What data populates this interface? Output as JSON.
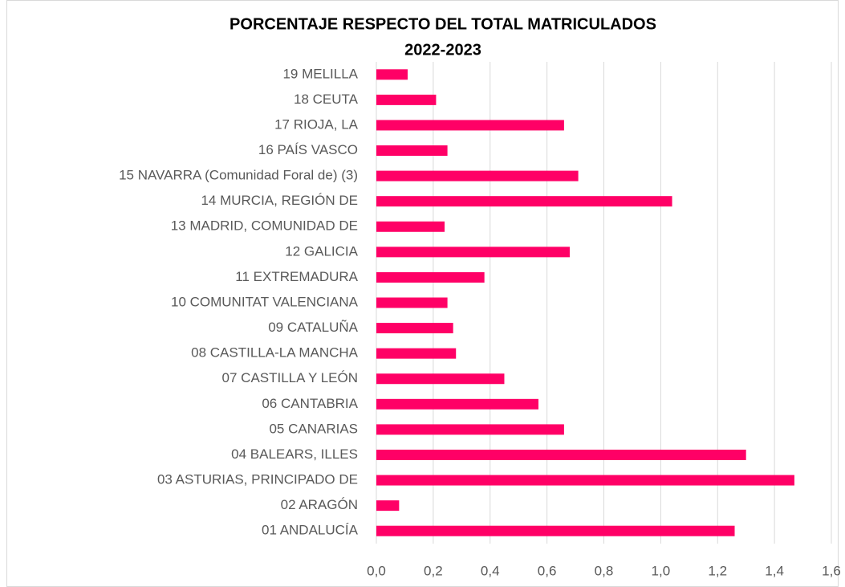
{
  "chart_data": {
    "type": "barh",
    "title": [
      "PORCENTAJE RESPECTO DEL TOTAL MATRICULADOS",
      "2022-2023"
    ],
    "categories": [
      "01 ANDALUCÍA",
      "02 ARAGÓN",
      "03 ASTURIAS, PRINCIPADO DE",
      "04 BALEARS, ILLES",
      "05 CANARIAS",
      "06 CANTABRIA",
      "07 CASTILLA Y LEÓN",
      "08 CASTILLA-LA MANCHA",
      "09 CATALUÑA",
      "10 COMUNITAT VALENCIANA",
      "11 EXTREMADURA",
      "12 GALICIA",
      "13 MADRID, COMUNIDAD DE",
      "14 MURCIA, REGIÓN DE",
      "15 NAVARRA (Comunidad Foral de) (3)",
      "16 PAÍS VASCO",
      "17 RIOJA, LA",
      "18 CEUTA",
      "19 MELILLA"
    ],
    "values": [
      1.26,
      0.08,
      1.47,
      1.3,
      0.66,
      0.57,
      0.45,
      0.28,
      0.27,
      0.25,
      0.38,
      0.68,
      0.24,
      1.04,
      0.71,
      0.25,
      0.66,
      0.21,
      0.11
    ],
    "color": "#ff0066",
    "xlim": [
      0,
      1.6
    ],
    "xticks": [
      {
        "value": 0,
        "label": "0,0"
      },
      {
        "value": 0.2,
        "label": "0,2"
      },
      {
        "value": 0.4,
        "label": "0,4"
      },
      {
        "value": 0.6,
        "label": "0,6"
      },
      {
        "value": 0.8,
        "label": "0,8"
      },
      {
        "value": 1.0,
        "label": "1,0"
      },
      {
        "value": 1.2,
        "label": "1,2"
      },
      {
        "value": 1.4,
        "label": "1,4"
      },
      {
        "value": 1.6,
        "label": "1,6"
      }
    ],
    "grid": true
  }
}
